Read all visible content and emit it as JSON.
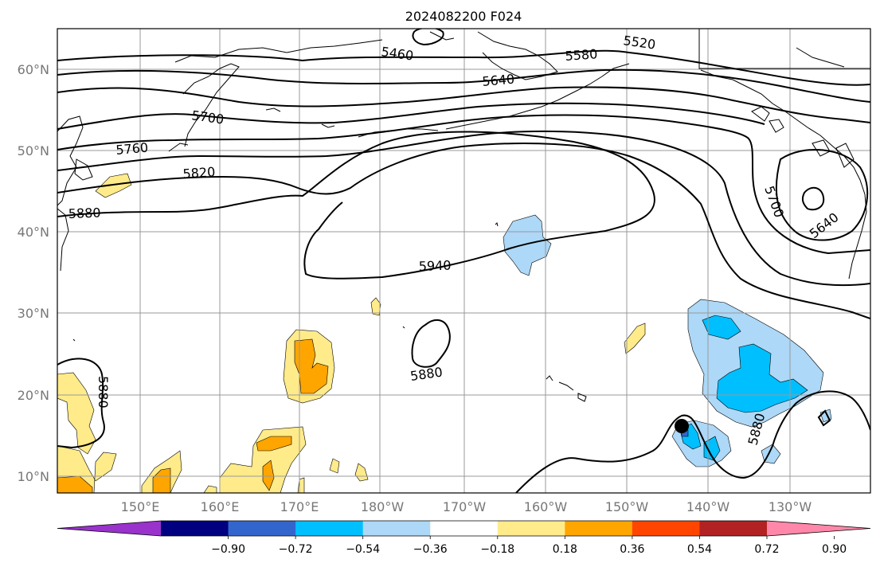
{
  "map": {
    "title": "2024082200 F024",
    "latitude_labels": [
      "60°N",
      "50°N",
      "40°N",
      "30°N",
      "20°N",
      "10°N"
    ],
    "longitude_labels": [
      "150°E",
      "160°E",
      "170°E",
      "180°W",
      "170°W",
      "160°W",
      "150°W",
      "140°W",
      "130°W"
    ],
    "extent": {
      "lon_west": 140,
      "lon_east": -121,
      "lat_south": 8,
      "lat_north": 65
    },
    "gridlines": true,
    "contour_labels": [
      "5460",
      "5520",
      "5580",
      "5640",
      "5700",
      "5760",
      "5820",
      "5880",
      "5940",
      "5880",
      "5880",
      "5880",
      "5700",
      "5640"
    ],
    "marker": {
      "name": "black dot",
      "lat": 16.3,
      "lon": -143.3
    }
  },
  "colorbar": {
    "tick_labels": [
      "−0.90",
      "−0.72",
      "−0.54",
      "−0.36",
      "−0.18",
      "0.18",
      "0.36",
      "0.54",
      "0.72",
      "0.90"
    ],
    "levels": [
      -0.9,
      -0.72,
      -0.54,
      -0.36,
      -0.18,
      0.18,
      0.36,
      0.54,
      0.72,
      0.9
    ],
    "colors": [
      "#9933cc",
      "#000080",
      "#3366cc",
      "#00bfff",
      "#add8f7",
      "#ffffff",
      "#ffeb8a",
      "#ffa500",
      "#ff4500",
      "#b22222",
      "#ff88aa"
    ],
    "extend": "both"
  }
}
